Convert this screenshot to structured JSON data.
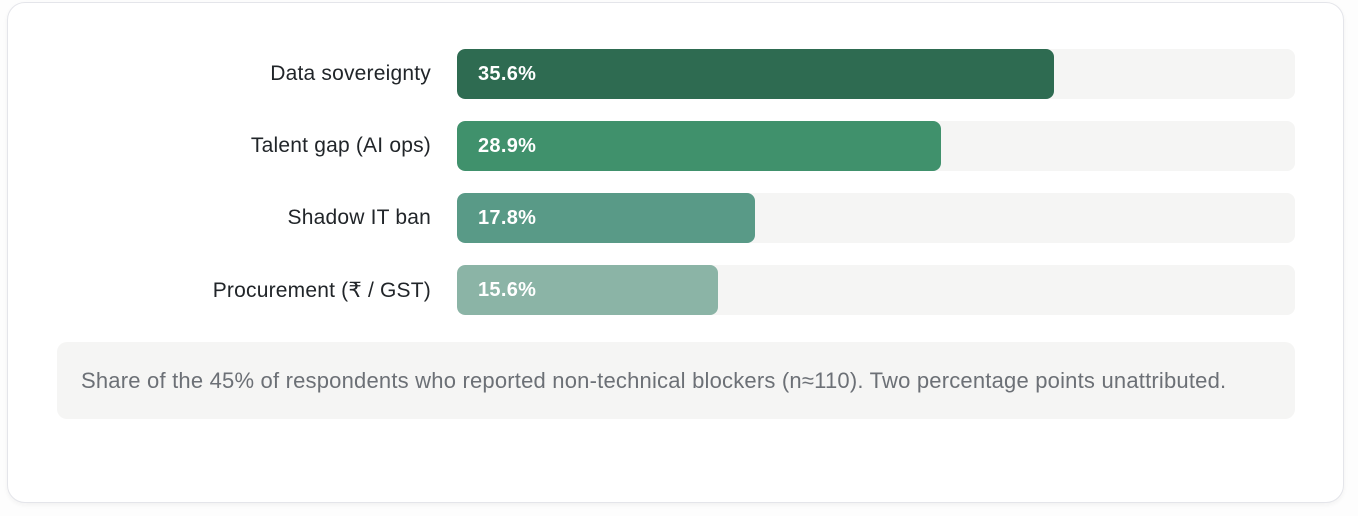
{
  "chart_data": {
    "type": "bar",
    "orientation": "horizontal",
    "title": "",
    "categories": [
      "Data sovereignty",
      "Talent gap (AI ops)",
      "Shadow IT ban",
      "Procurement (₹ / GST)"
    ],
    "values": [
      35.6,
      28.9,
      17.8,
      15.6
    ],
    "value_labels": [
      "35.6%",
      "28.9%",
      "17.8%",
      "15.6%"
    ],
    "xlim": [
      0,
      50
    ],
    "grid": false,
    "legend": "none",
    "bar_colors": [
      "#2e6b51",
      "#40916c",
      "#599a87",
      "#8bb4a6"
    ],
    "track_color": "#f5f5f4",
    "footnote": "Share of the 45% of respondents who reported non-technical blockers (n≈110). Two percentage points unattributed."
  }
}
